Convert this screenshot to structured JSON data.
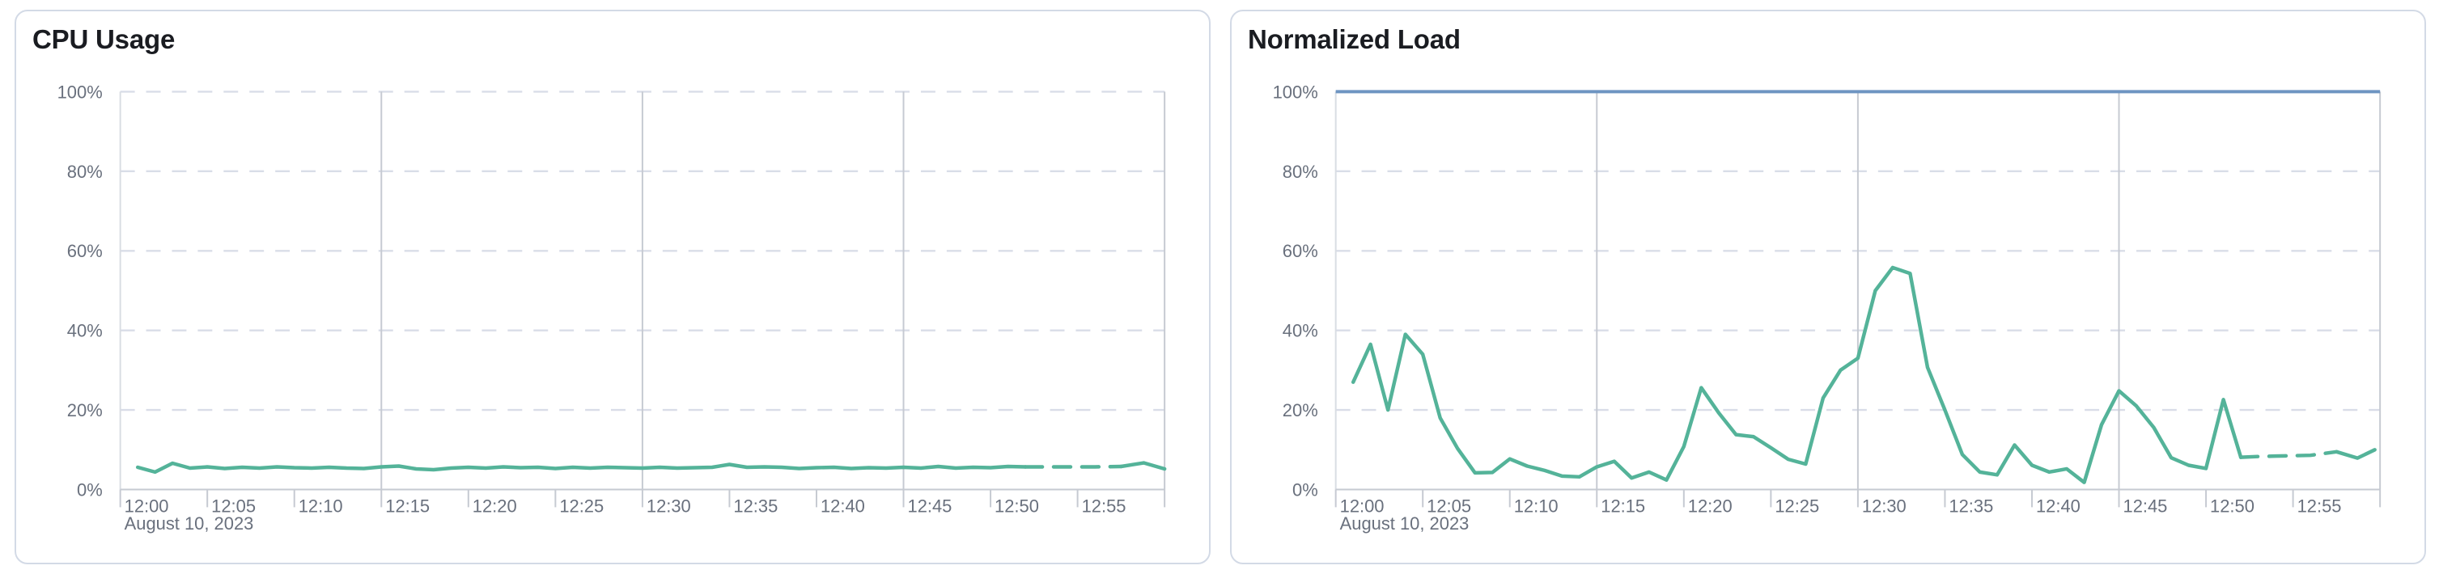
{
  "page": {
    "background": "#ffffff"
  },
  "colors": {
    "panel_border": "#d3dae6",
    "title_text": "#1a1c21",
    "axis_label_text": "#69707d",
    "gridline_dashed": "#d9dde8",
    "gridline_solid": "#c6cad2",
    "axis_line": "#c6cad2",
    "plot_left_edge": "#d9dde3",
    "series_green": "#54b399",
    "threshold_blue": "#6e95c2"
  },
  "chart_data": [
    {
      "type": "line",
      "title": "CPU Usage",
      "x_axis": {
        "start": "12:00",
        "end": "13:00",
        "tick_interval_minutes": 5,
        "tick_labels": [
          "12:00",
          "12:05",
          "12:10",
          "12:15",
          "12:20",
          "12:25",
          "12:30",
          "12:35",
          "12:40",
          "12:45",
          "12:50",
          "12:55"
        ],
        "secondary_label": "August 10, 2023",
        "major_gridline_minutes": [
          15,
          30,
          45,
          60
        ]
      },
      "y_axis": {
        "min": 0,
        "max": 100,
        "unit": "%",
        "tick_labels": [
          "0%",
          "20%",
          "40%",
          "60%",
          "80%",
          "100%"
        ],
        "gridline_values": [
          20,
          40,
          60,
          80,
          100
        ]
      },
      "legend": "none",
      "threshold_line": null,
      "series": [
        {
          "name": "CPU Usage",
          "color": "#54b399",
          "note": "trailing segment rendered dashed (partial/estimated data)",
          "solid_until_minute": 52,
          "dashed_until_minute": 57.5,
          "points": [
            [
              1,
              5.6
            ],
            [
              2,
              4.4
            ],
            [
              3,
              6.6
            ],
            [
              4,
              5.4
            ],
            [
              5,
              5.7
            ],
            [
              6,
              5.3
            ],
            [
              7,
              5.6
            ],
            [
              8,
              5.4
            ],
            [
              9,
              5.7
            ],
            [
              10,
              5.5
            ],
            [
              11,
              5.4
            ],
            [
              12,
              5.6
            ],
            [
              13,
              5.4
            ],
            [
              14,
              5.3
            ],
            [
              15,
              5.7
            ],
            [
              16,
              5.9
            ],
            [
              17,
              5.2
            ],
            [
              18,
              5.0
            ],
            [
              19,
              5.4
            ],
            [
              20,
              5.6
            ],
            [
              21,
              5.4
            ],
            [
              22,
              5.7
            ],
            [
              23,
              5.5
            ],
            [
              24,
              5.6
            ],
            [
              25,
              5.3
            ],
            [
              26,
              5.6
            ],
            [
              27,
              5.4
            ],
            [
              28,
              5.6
            ],
            [
              29,
              5.5
            ],
            [
              30,
              5.4
            ],
            [
              31,
              5.6
            ],
            [
              32,
              5.4
            ],
            [
              33,
              5.5
            ],
            [
              34,
              5.6
            ],
            [
              35,
              6.3
            ],
            [
              36,
              5.6
            ],
            [
              37,
              5.7
            ],
            [
              38,
              5.6
            ],
            [
              39,
              5.3
            ],
            [
              40,
              5.5
            ],
            [
              41,
              5.6
            ],
            [
              42,
              5.3
            ],
            [
              43,
              5.5
            ],
            [
              44,
              5.4
            ],
            [
              45,
              5.6
            ],
            [
              46,
              5.4
            ],
            [
              47,
              5.8
            ],
            [
              48,
              5.4
            ],
            [
              49,
              5.6
            ],
            [
              50,
              5.5
            ],
            [
              51,
              5.8
            ],
            [
              52,
              5.7
            ],
            [
              53,
              5.7
            ],
            [
              54,
              5.7
            ],
            [
              55,
              5.7
            ],
            [
              56,
              5.7
            ],
            [
              57.5,
              5.8
            ],
            [
              58.8,
              6.7
            ],
            [
              60,
              5.2
            ]
          ]
        }
      ]
    },
    {
      "type": "line",
      "title": "Normalized Load",
      "x_axis": {
        "start": "12:00",
        "end": "13:00",
        "tick_interval_minutes": 5,
        "tick_labels": [
          "12:00",
          "12:05",
          "12:10",
          "12:15",
          "12:20",
          "12:25",
          "12:30",
          "12:35",
          "12:40",
          "12:45",
          "12:50",
          "12:55"
        ],
        "secondary_label": "August 10, 2023",
        "major_gridline_minutes": [
          15,
          30,
          45,
          60
        ]
      },
      "y_axis": {
        "min": 0,
        "max": 100,
        "unit": "%",
        "tick_labels": [
          "0%",
          "20%",
          "40%",
          "60%",
          "80%",
          "100%"
        ],
        "gridline_values": [
          20,
          40,
          60,
          80,
          100
        ]
      },
      "legend": "none",
      "threshold_line": {
        "value": 100,
        "color": "#6e95c2"
      },
      "series": [
        {
          "name": "Normalized Load",
          "color": "#54b399",
          "note": "trailing segment rendered dashed (partial/estimated data)",
          "solid_until_minute": 52,
          "dashed_until_minute": 57.5,
          "points": [
            [
              1,
              27
            ],
            [
              2,
              36.5
            ],
            [
              3,
              20
            ],
            [
              4,
              39
            ],
            [
              5,
              34
            ],
            [
              6,
              18
            ],
            [
              7,
              10.3
            ],
            [
              8,
              4.2
            ],
            [
              9,
              4.3
            ],
            [
              10,
              7.7
            ],
            [
              11,
              5.9
            ],
            [
              12,
              4.8
            ],
            [
              13,
              3.4
            ],
            [
              14,
              3.2
            ],
            [
              15,
              5.7
            ],
            [
              16,
              7.1
            ],
            [
              17,
              2.9
            ],
            [
              18,
              4.4
            ],
            [
              19,
              2.4
            ],
            [
              20,
              10.8
            ],
            [
              21,
              25.6
            ],
            [
              22,
              19.3
            ],
            [
              23,
              13.8
            ],
            [
              24,
              13.3
            ],
            [
              25,
              10.5
            ],
            [
              26,
              7.6
            ],
            [
              27,
              6.4
            ],
            [
              28,
              23
            ],
            [
              29,
              30
            ],
            [
              30,
              33
            ],
            [
              31,
              50
            ],
            [
              32,
              55.8
            ],
            [
              33,
              54.3
            ],
            [
              34,
              30.7
            ],
            [
              35,
              20
            ],
            [
              36,
              8.8
            ],
            [
              37,
              4.4
            ],
            [
              38,
              3.7
            ],
            [
              39,
              11.2
            ],
            [
              40,
              6.1
            ],
            [
              41,
              4.4
            ],
            [
              42,
              5.2
            ],
            [
              43,
              1.8
            ],
            [
              44,
              16.3
            ],
            [
              45,
              24.8
            ],
            [
              46,
              21
            ],
            [
              47,
              15.6
            ],
            [
              48,
              8
            ],
            [
              49,
              6.1
            ],
            [
              50,
              5.3
            ],
            [
              51,
              22.6
            ],
            [
              52,
              8.1
            ],
            [
              53,
              8.3
            ],
            [
              54,
              8.4
            ],
            [
              55,
              8.5
            ],
            [
              56,
              8.6
            ],
            [
              57.5,
              9.5
            ],
            [
              58.7,
              7.9
            ],
            [
              59.7,
              10
            ]
          ]
        }
      ]
    }
  ]
}
